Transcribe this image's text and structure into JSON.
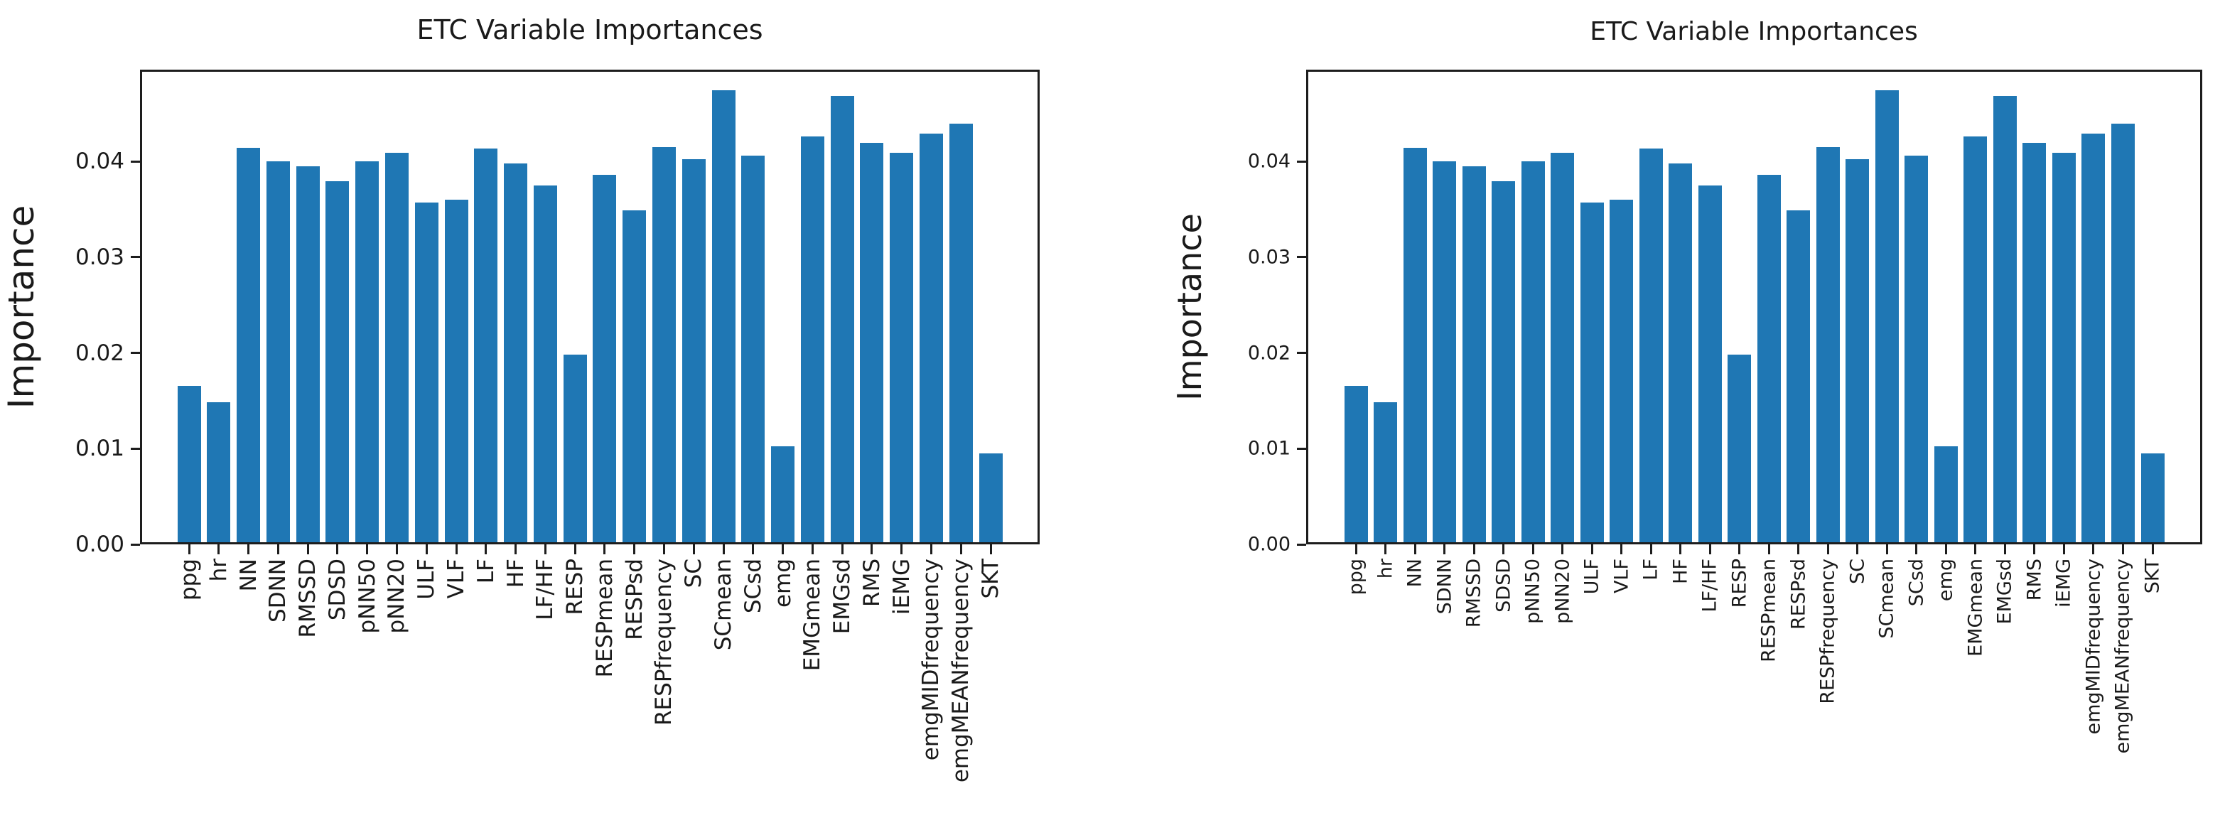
{
  "figure": {
    "background_color": "#ffffff",
    "bar_color": "#1f77b4",
    "axis_color": "#1d1d1d",
    "text_color": "#1a1a1a"
  },
  "chart_data": [
    {
      "type": "bar",
      "title": "ETC Variable Importances",
      "xlabel": "",
      "ylabel": "Importance",
      "ylim": [
        0,
        0.0496
      ],
      "grid": false,
      "legend": null,
      "x_tick_rotation_deg": 90,
      "yticks": [
        {
          "value": 0.0,
          "label": "0.00"
        },
        {
          "value": 0.01,
          "label": "0.01"
        },
        {
          "value": 0.02,
          "label": "0.02"
        },
        {
          "value": 0.03,
          "label": "0.03"
        },
        {
          "value": 0.04,
          "label": "0.04"
        }
      ],
      "categories": [
        "ppg",
        "hr",
        "NN",
        "SDNN",
        "RMSSD",
        "SDSD",
        "pNN50",
        "pNN20",
        "ULF",
        "VLF",
        "LF",
        "HF",
        "LF/HF",
        "RESP",
        "RESPmean",
        "RESPsd",
        "RESPfrequency",
        "SC",
        "SCmean",
        "SCsd",
        "emg",
        "EMGmean",
        "EMGsd",
        "RMS",
        "iEMG",
        "emgMIDfrequency",
        "emgMEANfrequency",
        "SKT"
      ],
      "values": [
        0.0163,
        0.0146,
        0.0412,
        0.0398,
        0.0393,
        0.0377,
        0.0398,
        0.0407,
        0.0355,
        0.0358,
        0.0411,
        0.0396,
        0.0373,
        0.0196,
        0.0384,
        0.0347,
        0.0413,
        0.04,
        0.0472,
        0.0404,
        0.01,
        0.0424,
        0.0466,
        0.0417,
        0.0407,
        0.0427,
        0.0437,
        0.0093
      ]
    },
    {
      "type": "bar",
      "title": "ETC Variable Importances",
      "xlabel": "",
      "ylabel": "Importance",
      "ylim": [
        0,
        0.0496
      ],
      "grid": false,
      "legend": null,
      "x_tick_rotation_deg": 90,
      "yticks": [
        {
          "value": 0.0,
          "label": "0.00"
        },
        {
          "value": 0.01,
          "label": "0.01"
        },
        {
          "value": 0.02,
          "label": "0.02"
        },
        {
          "value": 0.03,
          "label": "0.03"
        },
        {
          "value": 0.04,
          "label": "0.04"
        }
      ],
      "categories": [
        "ppg",
        "hr",
        "NN",
        "SDNN",
        "RMSSD",
        "SDSD",
        "pNN50",
        "pNN20",
        "ULF",
        "VLF",
        "LF",
        "HF",
        "LF/HF",
        "RESP",
        "RESPmean",
        "RESPsd",
        "RESPfrequency",
        "SC",
        "SCmean",
        "SCsd",
        "emg",
        "EMGmean",
        "EMGsd",
        "RMS",
        "iEMG",
        "emgMIDfrequency",
        "emgMEANfrequency",
        "SKT"
      ],
      "values": [
        0.0163,
        0.0146,
        0.0412,
        0.0398,
        0.0393,
        0.0377,
        0.0398,
        0.0407,
        0.0355,
        0.0358,
        0.0411,
        0.0396,
        0.0373,
        0.0196,
        0.0384,
        0.0347,
        0.0413,
        0.04,
        0.0472,
        0.0404,
        0.01,
        0.0424,
        0.0466,
        0.0417,
        0.0407,
        0.0427,
        0.0437,
        0.0093
      ]
    }
  ]
}
